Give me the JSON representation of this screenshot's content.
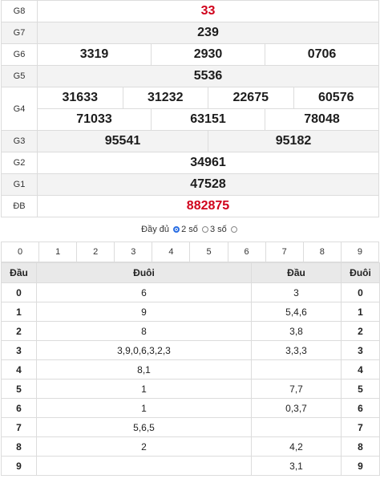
{
  "prizes": {
    "g8": {
      "label": "G8",
      "value": "33"
    },
    "g7": {
      "label": "G7",
      "value": "239"
    },
    "g6": {
      "label": "G6",
      "values": [
        "3319",
        "2930",
        "0706"
      ]
    },
    "g5": {
      "label": "G5",
      "value": "5536"
    },
    "g4": {
      "label": "G4",
      "row1": [
        "31633",
        "31232",
        "22675",
        "60576"
      ],
      "row2": [
        "71033",
        "63151",
        "78048"
      ]
    },
    "g3": {
      "label": "G3",
      "values": [
        "95541",
        "95182"
      ]
    },
    "g2": {
      "label": "G2",
      "value": "34961"
    },
    "g1": {
      "label": "G1",
      "value": "47528"
    },
    "db": {
      "label": "ĐB",
      "value": "882875"
    }
  },
  "options": {
    "full": "Đầy đủ",
    "two": "2 số",
    "three": "3 số",
    "selected": "two"
  },
  "digit_filter": [
    "0",
    "1",
    "2",
    "3",
    "4",
    "5",
    "6",
    "7",
    "8",
    "9"
  ],
  "head_tail": {
    "headers": [
      "Đầu",
      "Đuôi",
      "Đầu",
      "Đuôi"
    ],
    "rows": [
      {
        "d1": "0",
        "t1": "6",
        "h2": "3",
        "d2": "0"
      },
      {
        "d1": "1",
        "t1": "9",
        "h2": "5,4,6",
        "d2": "1"
      },
      {
        "d1": "2",
        "t1": "8",
        "h2": "3,8",
        "d2": "2"
      },
      {
        "d1": "3",
        "t1": "3,9,0,6,3,2,3",
        "h2": "3,3,3",
        "d2": "3"
      },
      {
        "d1": "4",
        "t1": "8,1",
        "h2": "",
        "d2": "4"
      },
      {
        "d1": "5",
        "t1": "1",
        "h2": "7,7",
        "d2": "5"
      },
      {
        "d1": "6",
        "t1": "1",
        "h2": "0,3,7",
        "d2": "6"
      },
      {
        "d1": "7",
        "t1": "5,6,5",
        "h2": "",
        "d2": "7"
      },
      {
        "d1": "8",
        "t1": "2",
        "h2": "4,2",
        "d2": "8"
      },
      {
        "d1": "9",
        "t1": "",
        "h2": "3,1",
        "d2": "9"
      }
    ]
  },
  "colors": {
    "special": "#d0021b",
    "radio_selected": "#2a6ee3"
  }
}
